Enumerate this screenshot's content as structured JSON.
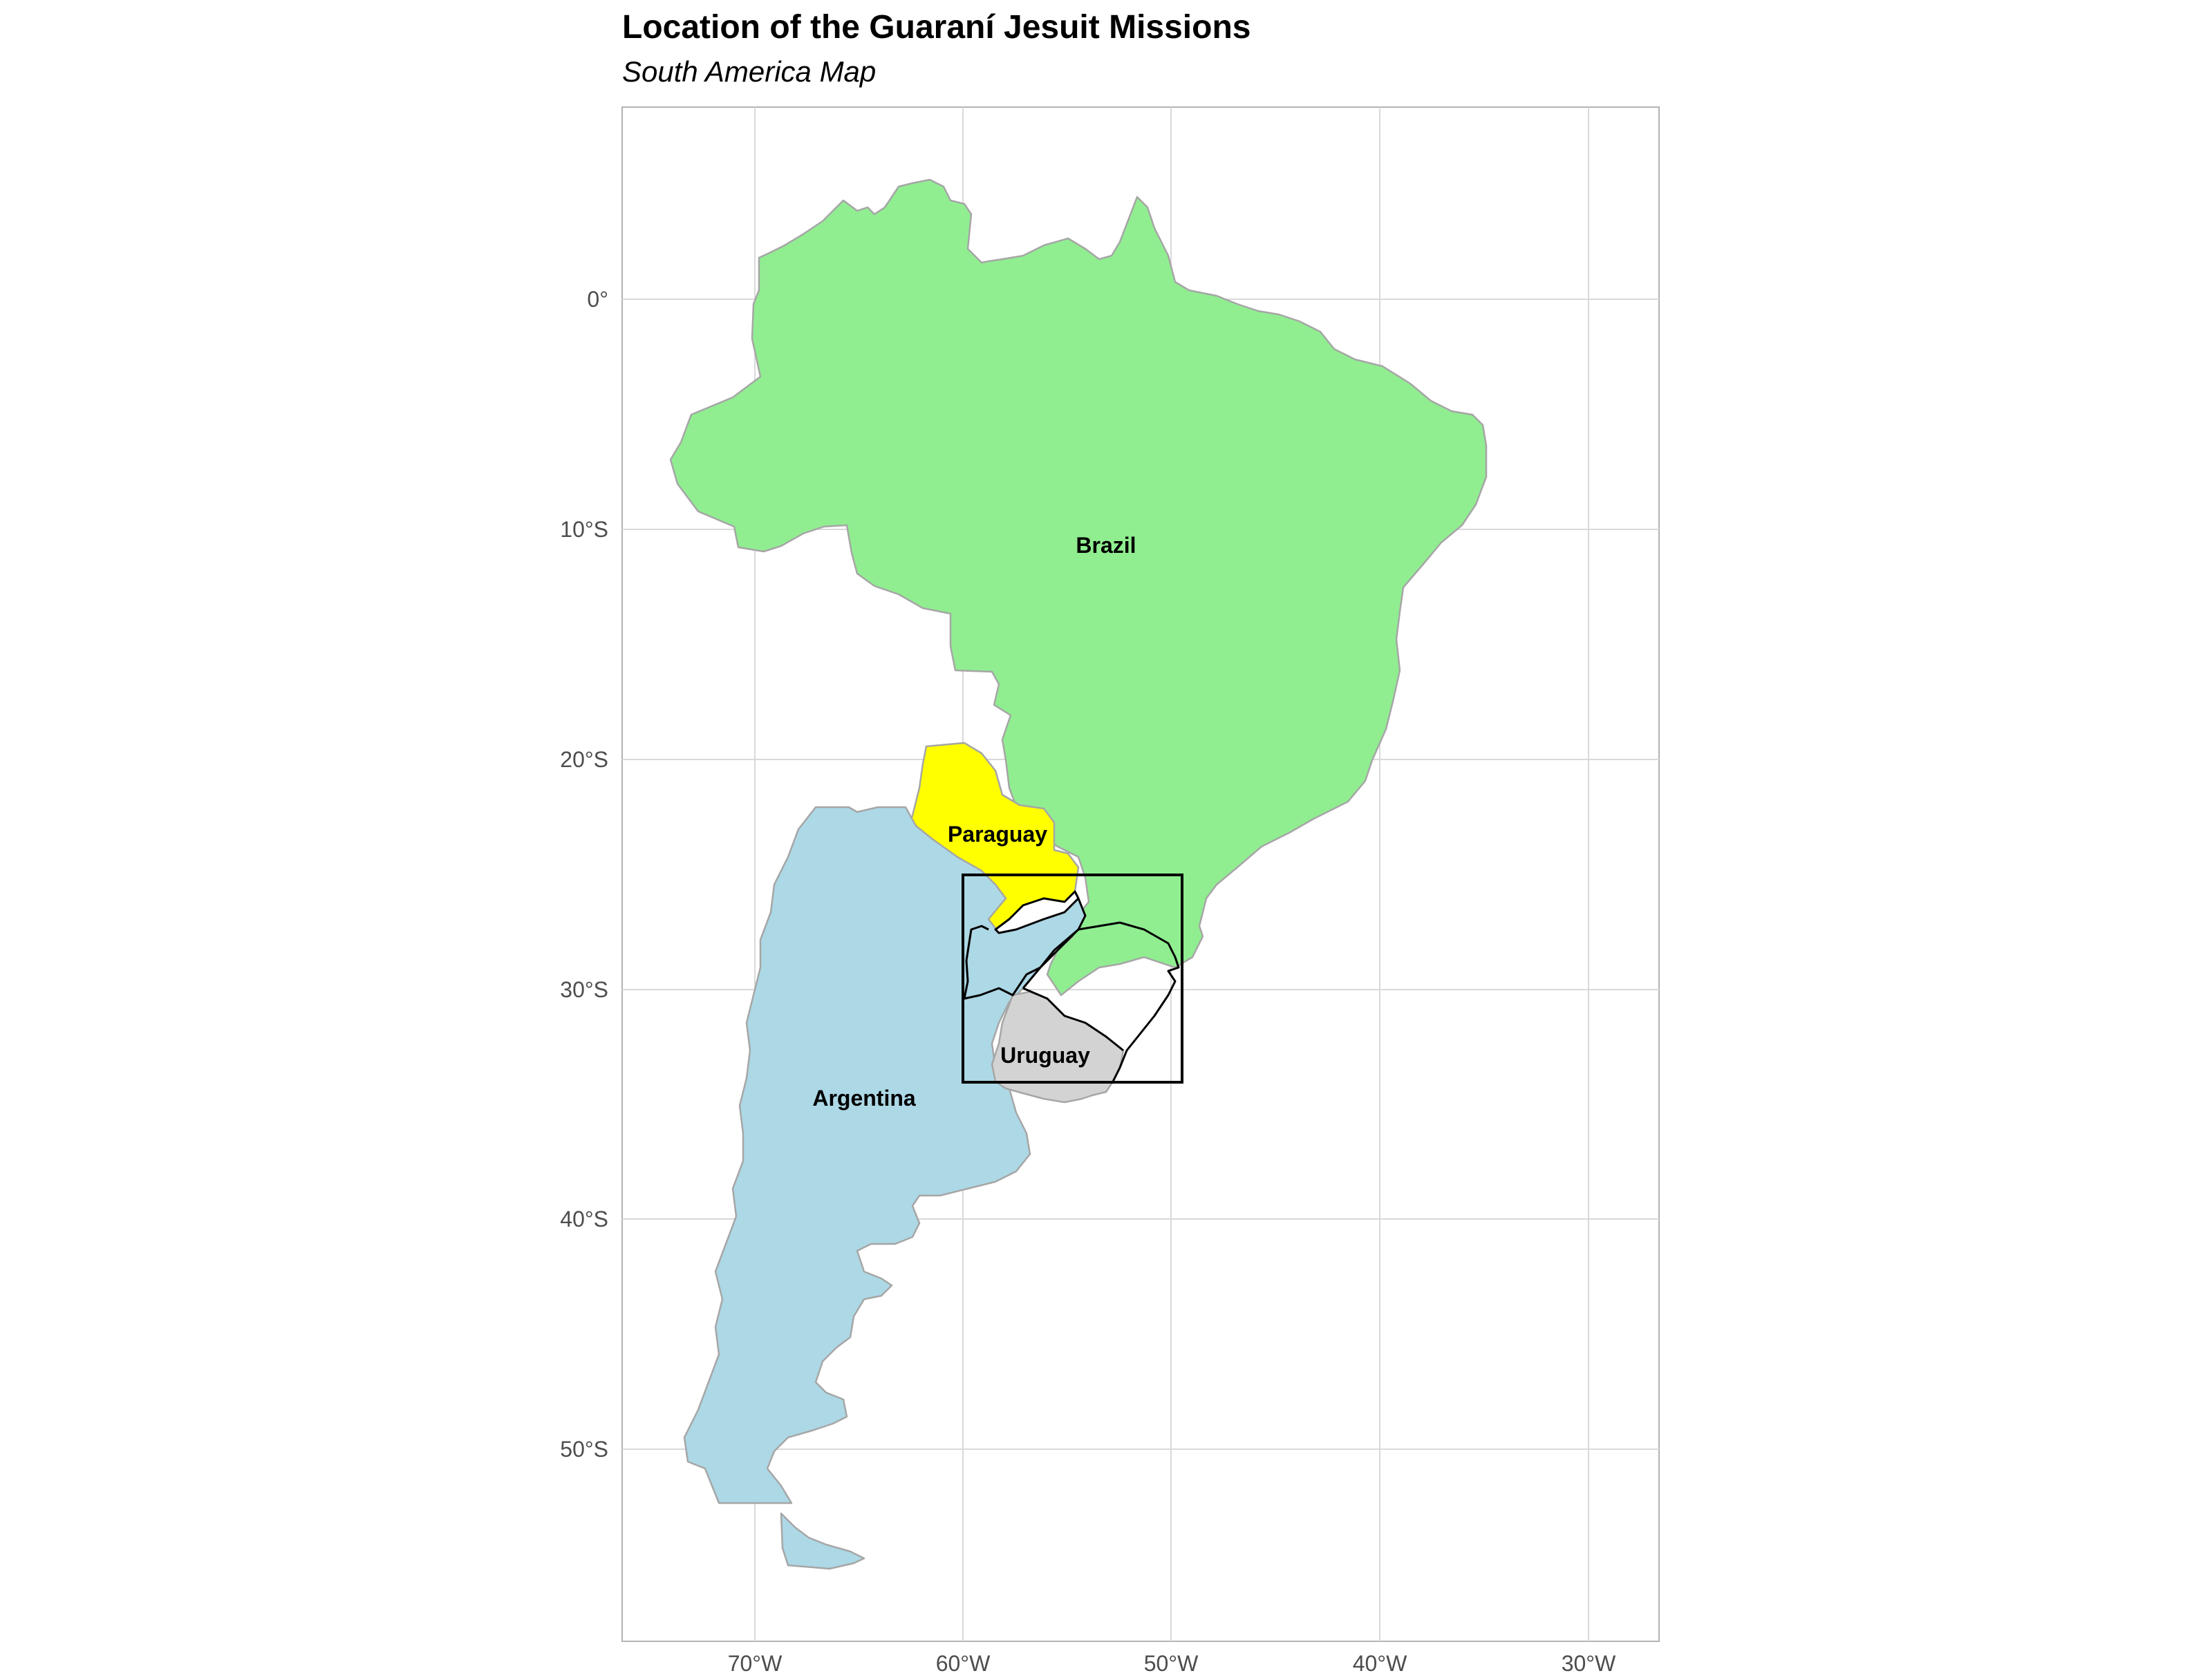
{
  "title": "Location of the Guaraní Jesuit Missions",
  "subtitle": "South America Map",
  "colors": {
    "brazil": "#90ee90",
    "paraguay": "#ffff00",
    "argentina": "#add8e6",
    "uruguay": "#d3d3d3",
    "border": "#a6a6a6",
    "grid": "#d9d9d9",
    "inset_box": "#000000"
  },
  "axes": {
    "x_ticks": [
      "70°W",
      "60°W",
      "50°W",
      "40°W",
      "30°W"
    ],
    "y_ticks": [
      "0°",
      "10°S",
      "20°S",
      "30°S",
      "40°S",
      "50°S"
    ],
    "x_range": [
      -76.3,
      -26.6
    ],
    "y_range": [
      -57.5,
      8.3
    ]
  },
  "countries": [
    {
      "name": "Brazil",
      "label": "Brazil",
      "label_lon": -52.0,
      "label_lat": -10.5
    },
    {
      "name": "Paraguay",
      "label": "Paraguay",
      "label_lon": -58.2,
      "label_lat": -23.3
    },
    {
      "name": "Argentina",
      "label": "Argentina",
      "label_lon": -65.0,
      "label_lat": -34.8
    },
    {
      "name": "Uruguay",
      "label": "Uruguay",
      "label_lon": -55.8,
      "label_lat": -32.8
    }
  ],
  "inset_box": {
    "lon_min": -60.0,
    "lon_max": -49.5,
    "lat_min": -34.0,
    "lat_max": -25.0
  }
}
